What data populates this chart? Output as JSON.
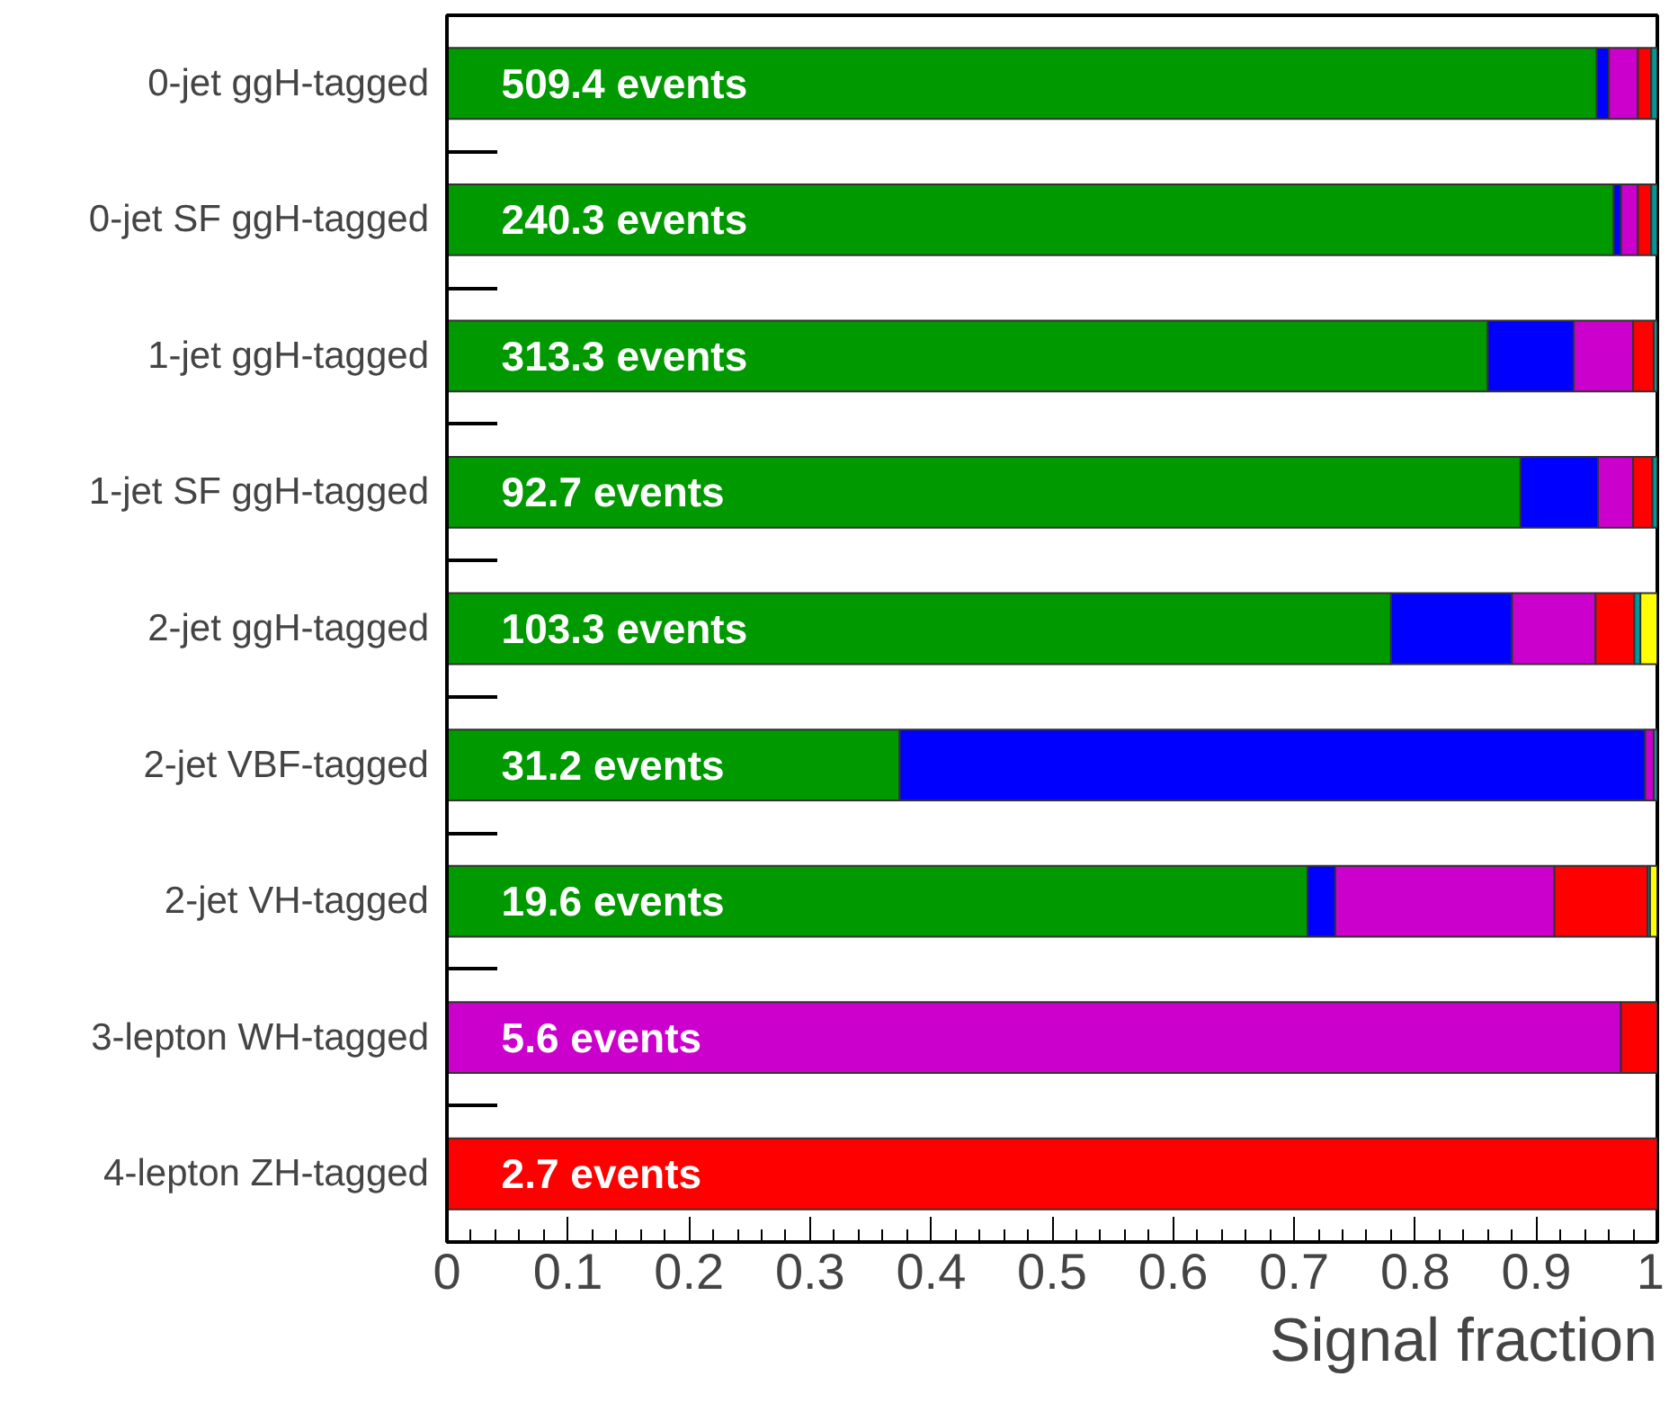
{
  "chart_data": {
    "type": "bar",
    "orientation": "horizontal",
    "stacked": true,
    "xlabel": "Signal fraction",
    "categories": [
      "0-jet ggH-tagged",
      "0-jet SF ggH-tagged",
      "1-jet ggH-tagged",
      "1-jet SF ggH-tagged",
      "2-jet ggH-tagged",
      "2-jet VBF-tagged",
      "2-jet VH-tagged",
      "3-lepton WH-tagged",
      "4-lepton ZH-tagged"
    ],
    "series": [
      {
        "color": "#009900",
        "values": [
          0.95,
          0.964,
          0.86,
          0.887,
          0.78,
          0.374,
          0.711,
          null,
          null
        ]
      },
      {
        "color": "#0000ff",
        "values": [
          0.01,
          0.006,
          0.071,
          0.064,
          0.1,
          0.616,
          0.023,
          null,
          null
        ]
      },
      {
        "color": "#cc00cc",
        "values": [
          0.024,
          0.014,
          0.049,
          0.029,
          0.069,
          0.007,
          0.181,
          0.97,
          null
        ]
      },
      {
        "color": "#ff0000",
        "values": [
          0.011,
          0.011,
          0.017,
          0.016,
          0.032,
          null,
          0.077,
          0.03,
          1.0
        ]
      },
      {
        "color": "#009999",
        "values": [
          0.005,
          0.005,
          0.003,
          0.004,
          0.005,
          0.003,
          0.002,
          null,
          null
        ]
      },
      {
        "color": "#ffff00",
        "values": [
          null,
          null,
          null,
          null,
          0.014,
          null,
          0.006,
          null,
          null
        ]
      }
    ],
    "xlim": [
      0,
      1
    ],
    "xticks": [
      0,
      0.1,
      0.2,
      0.3,
      0.4,
      0.5,
      0.6,
      0.7,
      0.8,
      0.9,
      1
    ],
    "annotations": [
      "509.4 events",
      "240.3 events",
      "313.3 events",
      "92.7 events",
      "103.3 events",
      "31.2 events",
      "19.6 events",
      "5.6 events",
      "2.7 events"
    ],
    "grid": false
  }
}
